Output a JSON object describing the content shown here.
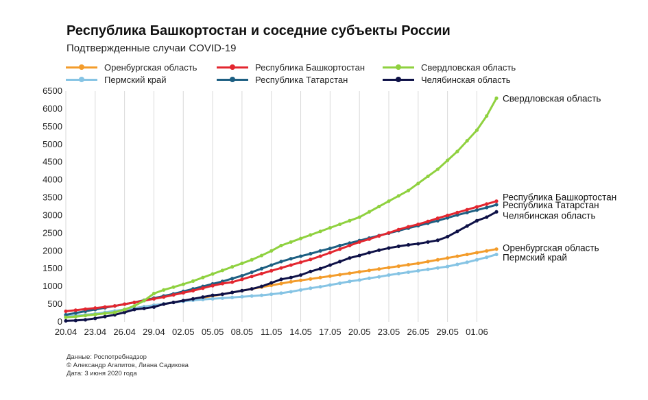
{
  "title": "Республика Башкортостан и соседние субъекты России",
  "subtitle": "Подтвержденные случаи COVID-19",
  "footer": {
    "source": "Данные: Роспотребнадзор",
    "authors": "© Александр Агапитов, Лиана Садикова",
    "date": "Дата: 3 июня 2020 года"
  },
  "chart_data": {
    "type": "line",
    "x_start": "20.04",
    "x_end": "03.06",
    "xticks": [
      "20.04",
      "23.04",
      "26.04",
      "29.04",
      "02.05",
      "05.05",
      "08.05",
      "11.05",
      "14.05",
      "17.05",
      "20.05",
      "23.05",
      "26.05",
      "29.05",
      "01.06"
    ],
    "yticks": [
      "0",
      "500",
      "1000",
      "1500",
      "2000",
      "2500",
      "3000",
      "3500",
      "4000",
      "4500",
      "5000",
      "5500",
      "6000",
      "6500"
    ],
    "ylim": [
      0,
      6500
    ],
    "grid": "vertical",
    "legend": "top",
    "series": [
      {
        "name": "Оренбургская область",
        "end_label": "Оренбургская область",
        "color": "#f39c2b",
        "values": [
          150,
          170,
          200,
          230,
          260,
          300,
          340,
          390,
          430,
          470,
          510,
          550,
          590,
          630,
          680,
          730,
          780,
          830,
          880,
          930,
          980,
          1030,
          1080,
          1130,
          1170,
          1210,
          1250,
          1290,
          1330,
          1370,
          1410,
          1450,
          1490,
          1530,
          1570,
          1610,
          1650,
          1700,
          1750,
          1800,
          1850,
          1900,
          1950,
          2000,
          2050
        ]
      },
      {
        "name": "Пермский край",
        "end_label": "Пермский край",
        "color": "#86c4e4",
        "values": [
          150,
          175,
          200,
          230,
          270,
          310,
          350,
          390,
          430,
          470,
          510,
          550,
          580,
          610,
          630,
          650,
          670,
          690,
          710,
          730,
          750,
          780,
          810,
          850,
          900,
          950,
          990,
          1040,
          1090,
          1140,
          1180,
          1230,
          1270,
          1320,
          1360,
          1400,
          1440,
          1480,
          1520,
          1560,
          1620,
          1680,
          1750,
          1820,
          1900
        ]
      },
      {
        "name": "Республика Башкортостан",
        "end_label": "Республика Башкортостан",
        "color": "#e3262f",
        "values": [
          300,
          330,
          360,
          390,
          420,
          450,
          500,
          550,
          600,
          650,
          700,
          760,
          820,
          880,
          950,
          1020,
          1080,
          1120,
          1200,
          1280,
          1360,
          1440,
          1520,
          1600,
          1680,
          1760,
          1850,
          1950,
          2050,
          2150,
          2250,
          2330,
          2420,
          2510,
          2600,
          2680,
          2750,
          2830,
          2920,
          3000,
          3080,
          3160,
          3240,
          3320,
          3400
        ]
      },
      {
        "name": "Республика Татарстан",
        "end_label": "Республика Татарстан",
        "color": "#1d5f82",
        "values": [
          200,
          250,
          300,
          350,
          400,
          450,
          500,
          550,
          610,
          670,
          730,
          790,
          860,
          930,
          1000,
          1070,
          1140,
          1220,
          1300,
          1400,
          1500,
          1600,
          1700,
          1780,
          1850,
          1920,
          2000,
          2070,
          2150,
          2220,
          2290,
          2360,
          2430,
          2500,
          2570,
          2640,
          2710,
          2780,
          2850,
          2930,
          3010,
          3080,
          3150,
          3220,
          3300
        ]
      },
      {
        "name": "Свердловская область",
        "end_label": "Свердловская область",
        "color": "#8fd13f",
        "values": [
          130,
          150,
          180,
          210,
          240,
          270,
          350,
          450,
          600,
          800,
          900,
          980,
          1060,
          1150,
          1250,
          1350,
          1450,
          1550,
          1650,
          1750,
          1870,
          2000,
          2150,
          2250,
          2350,
          2450,
          2550,
          2650,
          2750,
          2850,
          2950,
          3100,
          3250,
          3400,
          3550,
          3700,
          3900,
          4100,
          4300,
          4550,
          4800,
          5100,
          5400,
          5800,
          6300
        ]
      },
      {
        "name": "Челябинская область",
        "end_label": "Челябинская область",
        "color": "#0e1147",
        "values": [
          30,
          40,
          60,
          100,
          150,
          200,
          270,
          350,
          380,
          420,
          500,
          550,
          600,
          650,
          700,
          750,
          780,
          830,
          880,
          930,
          1000,
          1100,
          1200,
          1250,
          1320,
          1420,
          1500,
          1600,
          1700,
          1800,
          1870,
          1950,
          2020,
          2080,
          2130,
          2170,
          2200,
          2250,
          2300,
          2400,
          2550,
          2700,
          2850,
          2950,
          3100
        ]
      }
    ]
  }
}
